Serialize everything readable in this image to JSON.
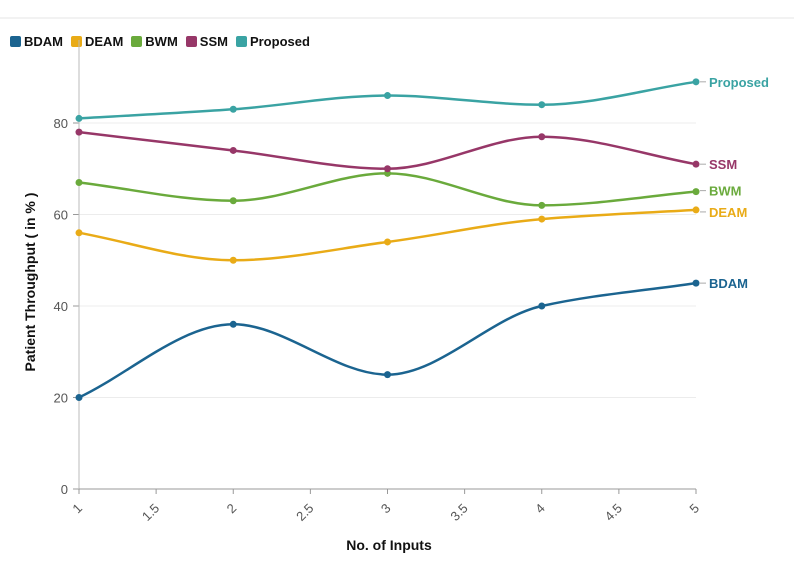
{
  "chart_data": {
    "type": "line",
    "title": "",
    "xlabel": "No. of Inputs",
    "ylabel": "Patient Throughput ( in % )",
    "x": [
      1,
      2,
      3,
      4,
      5
    ],
    "xticks": [
      "1",
      "1.5",
      "2",
      "2.5",
      "3",
      "3.5",
      "4",
      "4.5",
      "5"
    ],
    "yticks": [
      "0",
      "20",
      "40",
      "60",
      "80"
    ],
    "xlim": [
      1,
      5
    ],
    "ylim": [
      0,
      90
    ],
    "grid": "horizontal",
    "legend": "top-left",
    "series": [
      {
        "name": "BDAM",
        "color": "#1b6490",
        "values": [
          20,
          36,
          25,
          40,
          45
        ]
      },
      {
        "name": "DEAM",
        "color": "#e9ab17",
        "values": [
          56,
          50,
          54,
          59,
          61
        ]
      },
      {
        "name": "BWM",
        "color": "#6aaa3c",
        "values": [
          67,
          63,
          69,
          62,
          65
        ]
      },
      {
        "name": "SSM",
        "color": "#973768",
        "values": [
          78,
          74,
          70,
          77,
          71
        ]
      },
      {
        "name": "Proposed",
        "color": "#3aa3a3",
        "values": [
          81,
          83,
          86,
          84,
          89
        ]
      }
    ]
  }
}
